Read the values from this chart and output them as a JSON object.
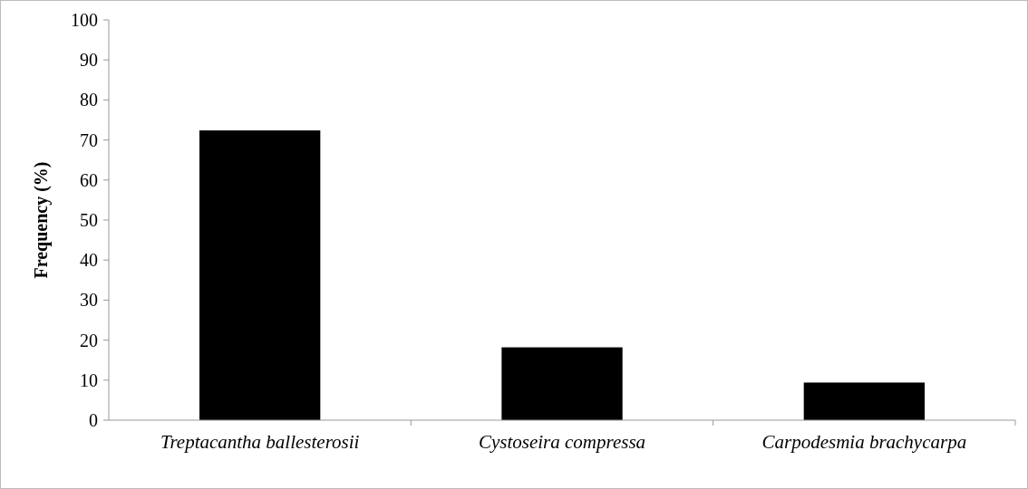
{
  "chart_data": {
    "type": "bar",
    "ylabel": "Frequency (%)",
    "categories": [
      "Treptacantha ballesterosii",
      "Cystoseira compressa",
      "Carpodesmia brachycarpa"
    ],
    "values": [
      72.4,
      18.2,
      9.4
    ],
    "color": "#000000",
    "ylim": [
      0,
      100
    ],
    "yticks": [
      0,
      10,
      20,
      30,
      40,
      50,
      60,
      70,
      80,
      90,
      100
    ],
    "grid": false
  }
}
